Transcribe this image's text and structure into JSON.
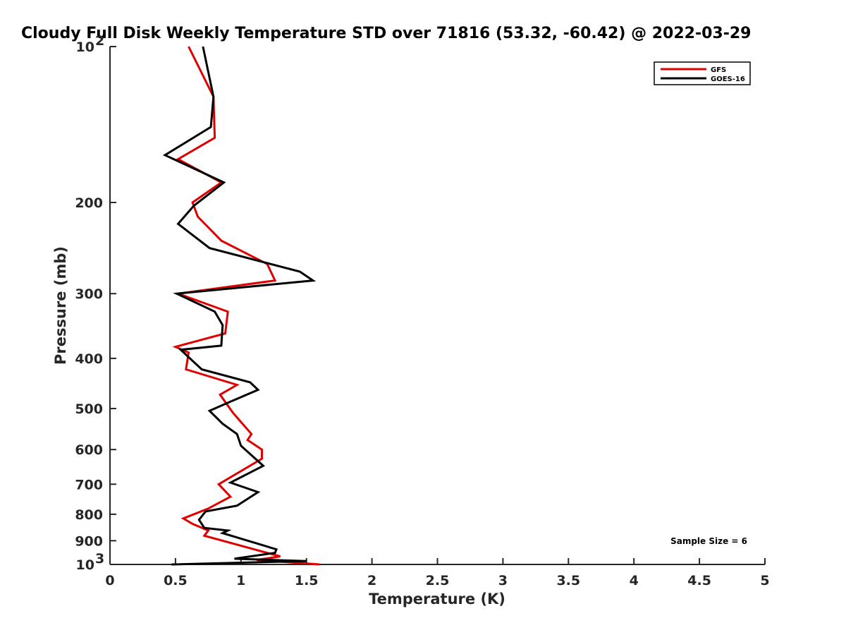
{
  "chart_data": {
    "type": "line",
    "title": "Cloudy Full Disk Weekly Temperature STD over 71816 (53.32, -60.42) @ 2022-03-29",
    "xlabel": "Temperature (K)",
    "ylabel": "Pressure (mb)",
    "xlim": [
      0,
      5
    ],
    "ylim": [
      100,
      1000
    ],
    "yscale": "log",
    "y_reversed": true,
    "x_ticks": [
      0,
      0.5,
      1,
      1.5,
      2,
      2.5,
      3,
      3.5,
      4,
      4.5,
      5
    ],
    "x_tick_labels": [
      "0",
      "0.5",
      "1",
      "1.5",
      "2",
      "2.5",
      "3",
      "3.5",
      "4",
      "4.5",
      "5"
    ],
    "y_ticks": [
      200,
      300,
      400,
      500,
      600,
      700,
      800,
      900
    ],
    "y_tick_labels": [
      "200",
      "300",
      "400",
      "500",
      "600",
      "700",
      "800",
      "900"
    ],
    "y_tick_extremes": [
      {
        "base": "10",
        "exp": "2",
        "value": 100
      },
      {
        "base": "10",
        "exp": "3",
        "value": 1000
      }
    ],
    "legend_position": "top-right",
    "annotation": "Sample Size = 6",
    "series": [
      {
        "name": "GFS",
        "color": "#e00000",
        "x": [
          0.6,
          0.79,
          0.8,
          0.52,
          0.85,
          0.63,
          0.67,
          0.85,
          1.2,
          1.26,
          0.52,
          0.9,
          0.88,
          0.5,
          0.6,
          0.58,
          0.97,
          0.84,
          0.94,
          1.08,
          1.05,
          1.16,
          1.16,
          0.83,
          0.92,
          0.75,
          0.56,
          0.63,
          0.75,
          0.72,
          1.3,
          1.12,
          1.6
        ],
        "y": [
          100,
          125,
          150,
          165,
          183,
          200,
          213,
          237,
          263,
          283,
          300,
          325,
          358,
          380,
          390,
          420,
          450,
          470,
          510,
          560,
          575,
          600,
          625,
          700,
          740,
          780,
          815,
          835,
          860,
          880,
          965,
          980,
          1000
        ]
      },
      {
        "name": "GOES-16",
        "color": "#000000",
        "x": [
          0.71,
          0.79,
          0.77,
          0.42,
          0.87,
          0.64,
          0.52,
          0.76,
          1.45,
          1.55,
          0.51,
          0.8,
          0.86,
          0.85,
          0.54,
          0.7,
          1.07,
          1.13,
          0.92,
          0.76,
          0.86,
          0.97,
          1.0,
          1.17,
          0.92,
          1.13,
          0.97,
          0.73,
          0.68,
          0.72,
          0.9,
          0.86,
          1.27,
          1.26,
          0.95,
          1.5,
          0.47
        ],
        "y": [
          100,
          125,
          143,
          162,
          183,
          203,
          220,
          245,
          272,
          283,
          300,
          325,
          345,
          378,
          385,
          420,
          445,
          460,
          485,
          505,
          535,
          560,
          590,
          645,
          695,
          725,
          770,
          790,
          820,
          850,
          860,
          870,
          935,
          950,
          975,
          985,
          1000
        ]
      }
    ]
  }
}
